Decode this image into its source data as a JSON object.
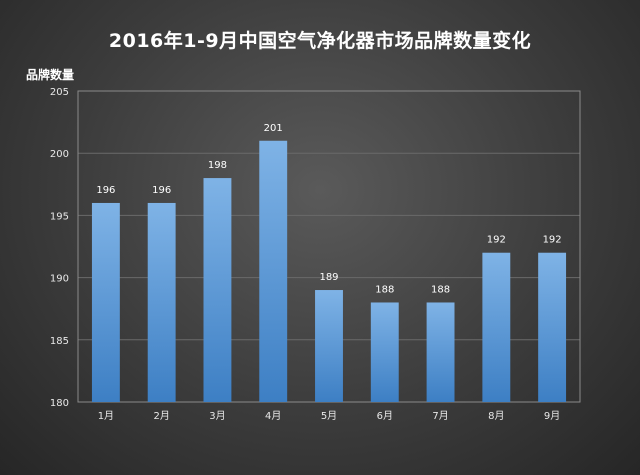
{
  "chart_data": {
    "type": "bar",
    "title": "2016年1-9月中国空气净化器市场品牌数量变化",
    "ylabel": "品牌数量",
    "xlabel": "",
    "categories": [
      "1月",
      "2月",
      "3月",
      "4月",
      "5月",
      "6月",
      "7月",
      "8月",
      "9月"
    ],
    "values": [
      196,
      196,
      198,
      201,
      189,
      188,
      188,
      192,
      192
    ],
    "ylim": [
      180,
      205
    ],
    "yticks": [
      180,
      185,
      190,
      195,
      200,
      205
    ],
    "grid": true,
    "legend": "none",
    "colors": {
      "bar_top": "#7fb3e6",
      "bar_bottom": "#3d7fc4",
      "grid": "#6a6a6a"
    }
  }
}
